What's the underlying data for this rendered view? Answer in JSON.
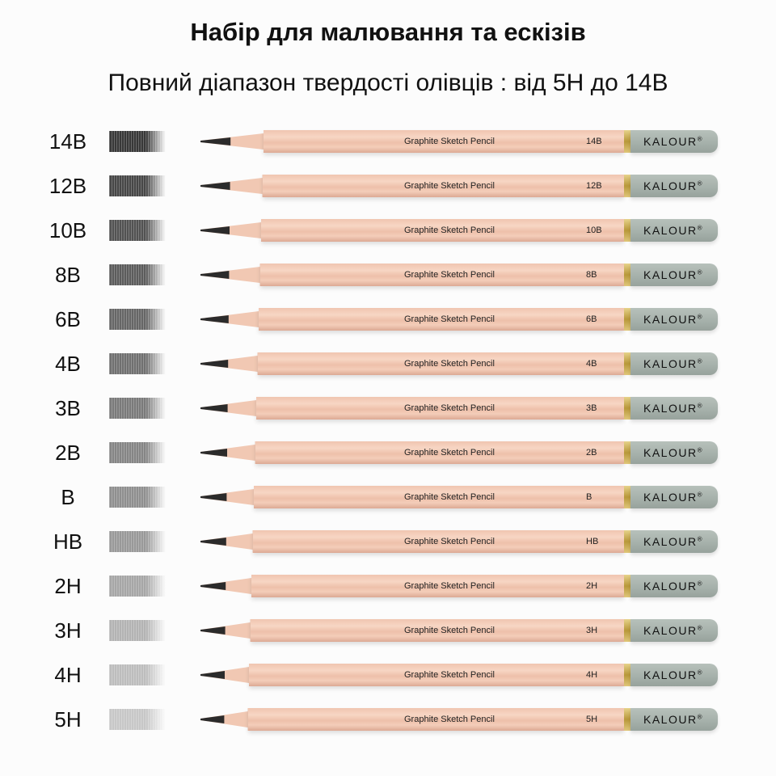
{
  "title": "Набір для малювання та ескізів",
  "subtitle": "Повний діапазон твердості олівців : від 5H до 14B",
  "pencil_text": "Graphite Sketch Pencil",
  "brand": "KALOUR",
  "brand_mark": "®",
  "colors": {
    "wood": "#f3cdb9",
    "cap": "#a8b3ad",
    "band": "#c9a84a",
    "graphite": "#2b2b2b"
  },
  "pencils": [
    {
      "grade": "14B",
      "darkness": 0.78
    },
    {
      "grade": "12B",
      "darkness": 0.72
    },
    {
      "grade": "10B",
      "darkness": 0.68
    },
    {
      "grade": "8B",
      "darkness": 0.64
    },
    {
      "grade": "6B",
      "darkness": 0.6
    },
    {
      "grade": "4B",
      "darkness": 0.56
    },
    {
      "grade": "3B",
      "darkness": 0.52
    },
    {
      "grade": "2B",
      "darkness": 0.48
    },
    {
      "grade": "B",
      "darkness": 0.44
    },
    {
      "grade": "HB",
      "darkness": 0.4
    },
    {
      "grade": "2H",
      "darkness": 0.35
    },
    {
      "grade": "3H",
      "darkness": 0.3
    },
    {
      "grade": "4H",
      "darkness": 0.26
    },
    {
      "grade": "5H",
      "darkness": 0.22
    }
  ]
}
